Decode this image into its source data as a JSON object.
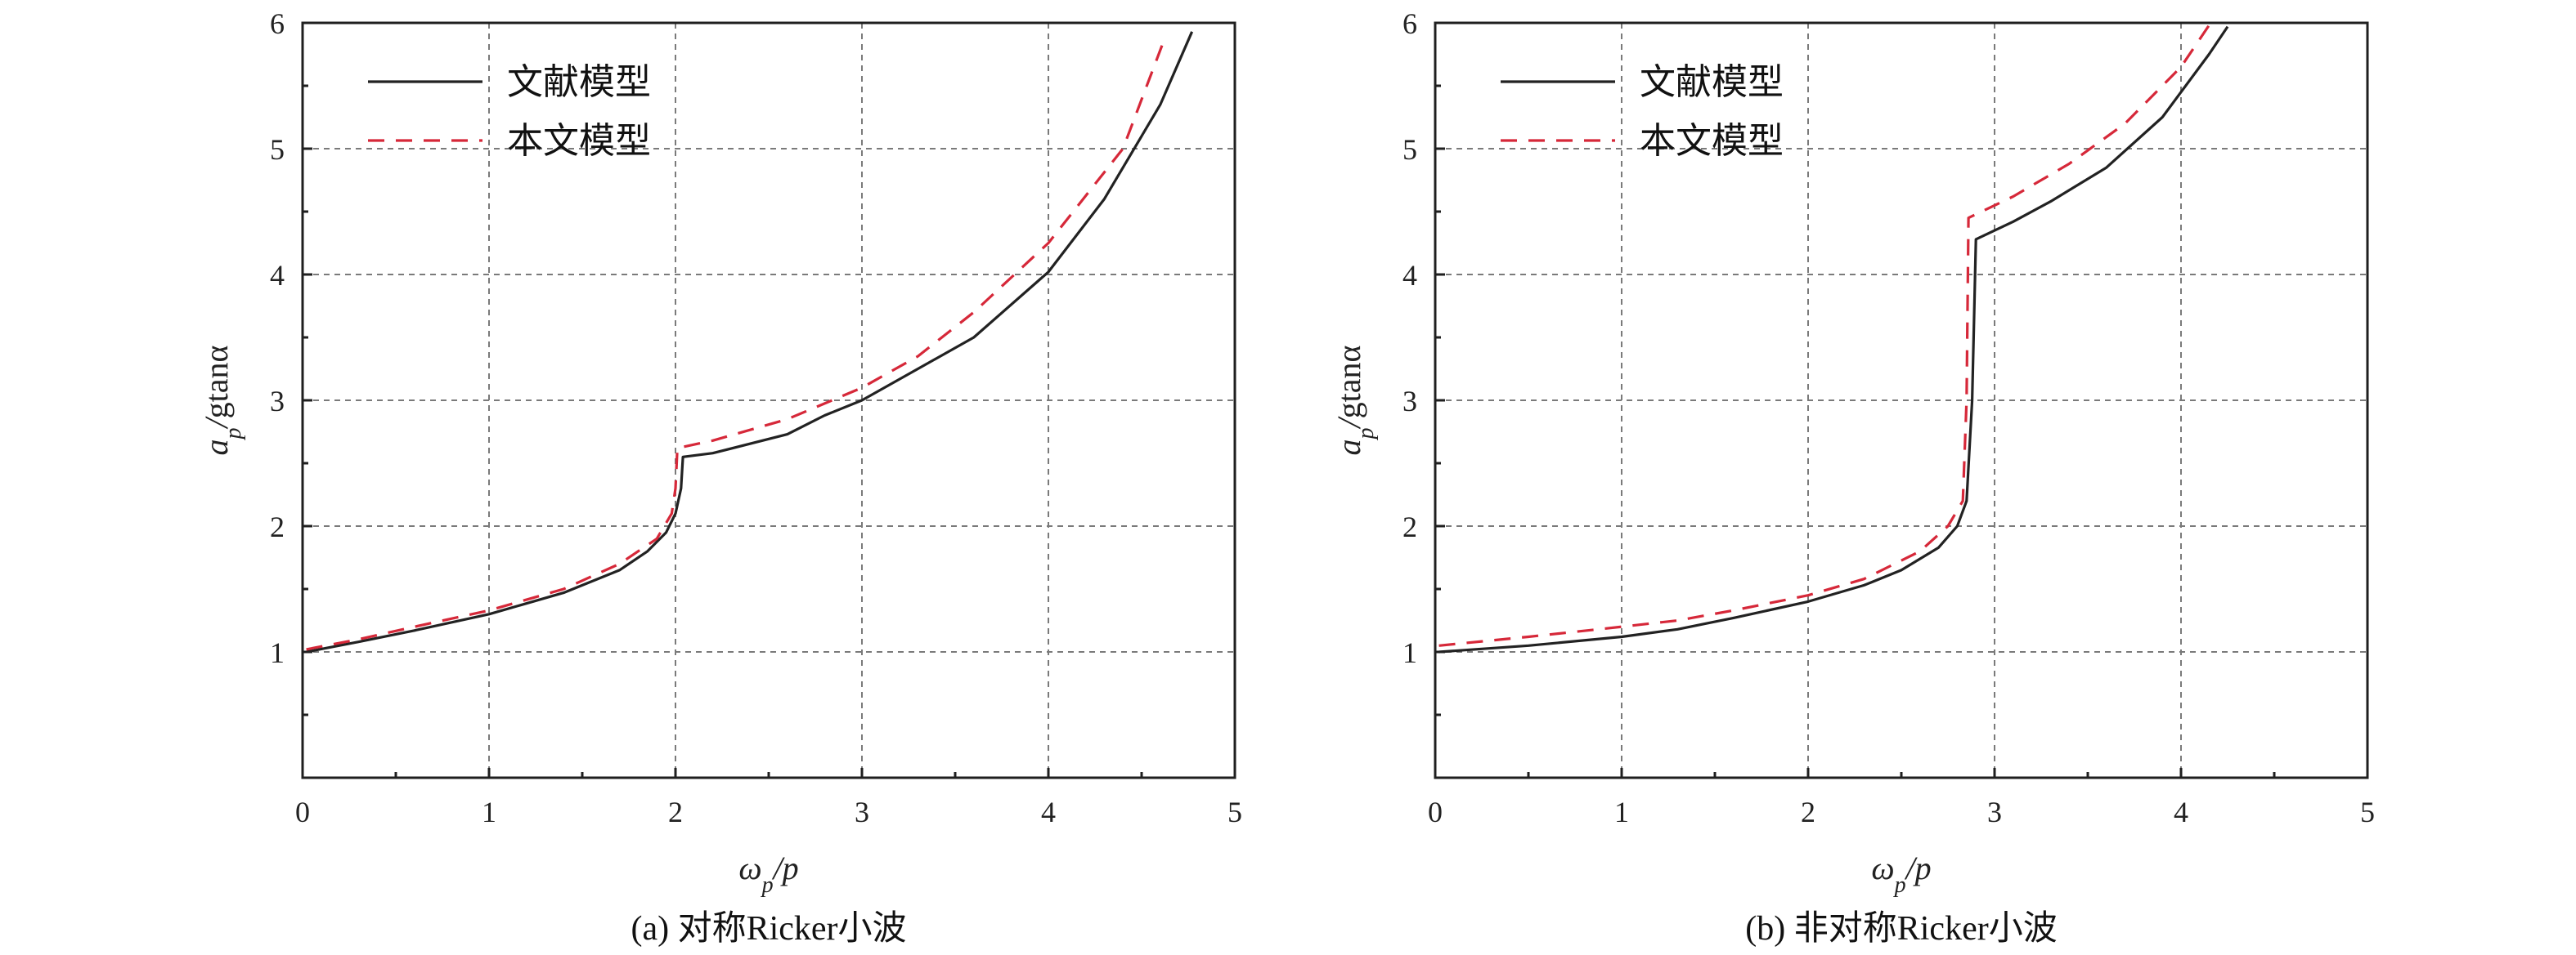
{
  "chart_data": [
    {
      "type": "line",
      "caption": "(a) 对称Ricker小波",
      "xlabel": "ω_p/p",
      "ylabel": "a_p/gtanα",
      "xlim": [
        0,
        5
      ],
      "ylim": [
        0,
        6
      ],
      "xticks": [
        "0",
        "1",
        "2",
        "3",
        "4",
        "5"
      ],
      "yticks": [
        "1",
        "2",
        "3",
        "4",
        "5",
        "6"
      ],
      "grid": true,
      "legend_position": "top-left",
      "series": [
        {
          "name": "文献模型",
          "color": "#222222",
          "style": "solid",
          "points": [
            [
              0.02,
              1.0
            ],
            [
              0.3,
              1.08
            ],
            [
              0.6,
              1.17
            ],
            [
              1.0,
              1.3
            ],
            [
              1.4,
              1.47
            ],
            [
              1.7,
              1.65
            ],
            [
              1.85,
              1.8
            ],
            [
              1.95,
              1.95
            ],
            [
              2.0,
              2.1
            ],
            [
              2.03,
              2.3
            ],
            [
              2.04,
              2.55
            ],
            [
              2.2,
              2.58
            ],
            [
              2.6,
              2.73
            ],
            [
              2.8,
              2.88
            ],
            [
              3.0,
              3.0
            ],
            [
              3.3,
              3.25
            ],
            [
              3.6,
              3.5
            ],
            [
              4.0,
              4.02
            ],
            [
              4.3,
              4.6
            ],
            [
              4.6,
              5.35
            ],
            [
              4.77,
              5.93
            ]
          ]
        },
        {
          "name": "本文模型",
          "color": "#d62839",
          "style": "dashed",
          "points": [
            [
              0.02,
              1.02
            ],
            [
              0.3,
              1.1
            ],
            [
              0.6,
              1.2
            ],
            [
              1.0,
              1.33
            ],
            [
              1.4,
              1.5
            ],
            [
              1.7,
              1.7
            ],
            [
              1.9,
              1.9
            ],
            [
              1.98,
              2.1
            ],
            [
              2.0,
              2.3
            ],
            [
              2.01,
              2.62
            ],
            [
              2.2,
              2.68
            ],
            [
              2.6,
              2.85
            ],
            [
              3.0,
              3.1
            ],
            [
              3.3,
              3.35
            ],
            [
              3.6,
              3.7
            ],
            [
              4.0,
              4.25
            ],
            [
              4.4,
              5.0
            ],
            [
              4.63,
              5.9
            ]
          ]
        }
      ]
    },
    {
      "type": "line",
      "caption": "(b) 非对称Ricker小波",
      "xlabel": "ω_p/p",
      "ylabel": "a_p/gtanα",
      "xlim": [
        0,
        5
      ],
      "ylim": [
        0,
        6
      ],
      "xticks": [
        "0",
        "1",
        "2",
        "3",
        "4",
        "5"
      ],
      "yticks": [
        "1",
        "2",
        "3",
        "4",
        "5",
        "6"
      ],
      "grid": true,
      "legend_position": "top-left",
      "series": [
        {
          "name": "文献模型",
          "color": "#222222",
          "style": "solid",
          "points": [
            [
              0.02,
              1.0
            ],
            [
              0.5,
              1.05
            ],
            [
              1.0,
              1.12
            ],
            [
              1.3,
              1.18
            ],
            [
              1.6,
              1.27
            ],
            [
              2.0,
              1.4
            ],
            [
              2.3,
              1.53
            ],
            [
              2.5,
              1.65
            ],
            [
              2.7,
              1.83
            ],
            [
              2.8,
              2.0
            ],
            [
              2.85,
              2.2
            ],
            [
              2.88,
              3.0
            ],
            [
              2.9,
              4.28
            ],
            [
              3.1,
              4.42
            ],
            [
              3.3,
              4.58
            ],
            [
              3.6,
              4.85
            ],
            [
              3.9,
              5.25
            ],
            [
              4.15,
              5.75
            ],
            [
              4.25,
              5.97
            ]
          ]
        },
        {
          "name": "本文模型",
          "color": "#d62839",
          "style": "dashed",
          "points": [
            [
              0.02,
              1.05
            ],
            [
              0.5,
              1.12
            ],
            [
              1.0,
              1.2
            ],
            [
              1.3,
              1.25
            ],
            [
              1.6,
              1.33
            ],
            [
              2.0,
              1.45
            ],
            [
              2.3,
              1.58
            ],
            [
              2.6,
              1.8
            ],
            [
              2.75,
              2.0
            ],
            [
              2.83,
              2.2
            ],
            [
              2.85,
              3.0
            ],
            [
              2.86,
              4.45
            ],
            [
              3.1,
              4.62
            ],
            [
              3.4,
              4.88
            ],
            [
              3.7,
              5.2
            ],
            [
              4.0,
              5.65
            ],
            [
              4.15,
              5.98
            ]
          ]
        }
      ]
    }
  ]
}
